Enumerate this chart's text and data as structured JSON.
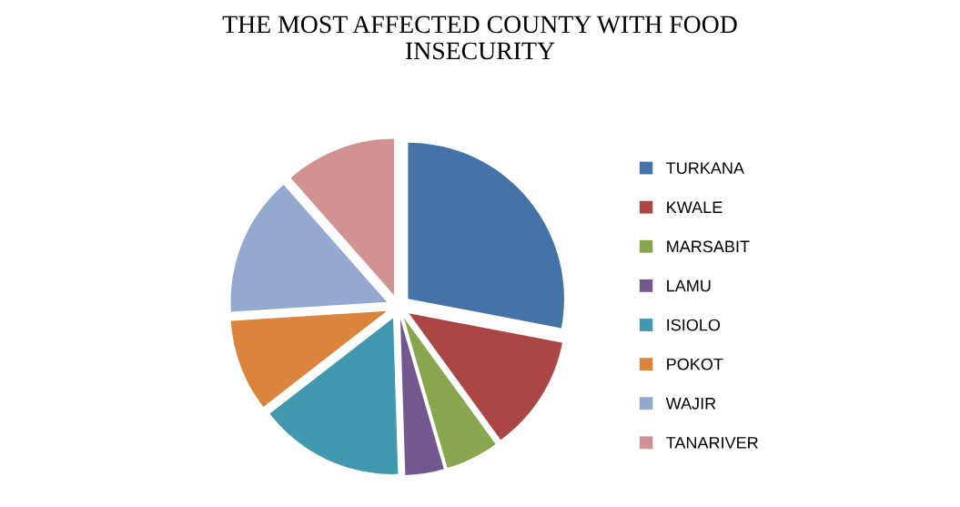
{
  "chart_data": {
    "type": "pie",
    "title": "THE MOST AFFECTED COUNTY WITH FOOD\nINSECURITY",
    "categories": [
      "TURKANA",
      "KWALE",
      "MARSABIT",
      "LAMU",
      "ISIOLO",
      "POKOT",
      "WAJIR",
      "TANARIVER"
    ],
    "values": [
      28,
      12,
      5.5,
      4,
      15,
      9.5,
      14.5,
      11.5
    ],
    "colors": [
      "#4572a7",
      "#aa4643",
      "#89a54e",
      "#71588f",
      "#4198af",
      "#db843d",
      "#93a9cf",
      "#d19392"
    ],
    "legend": "right"
  }
}
